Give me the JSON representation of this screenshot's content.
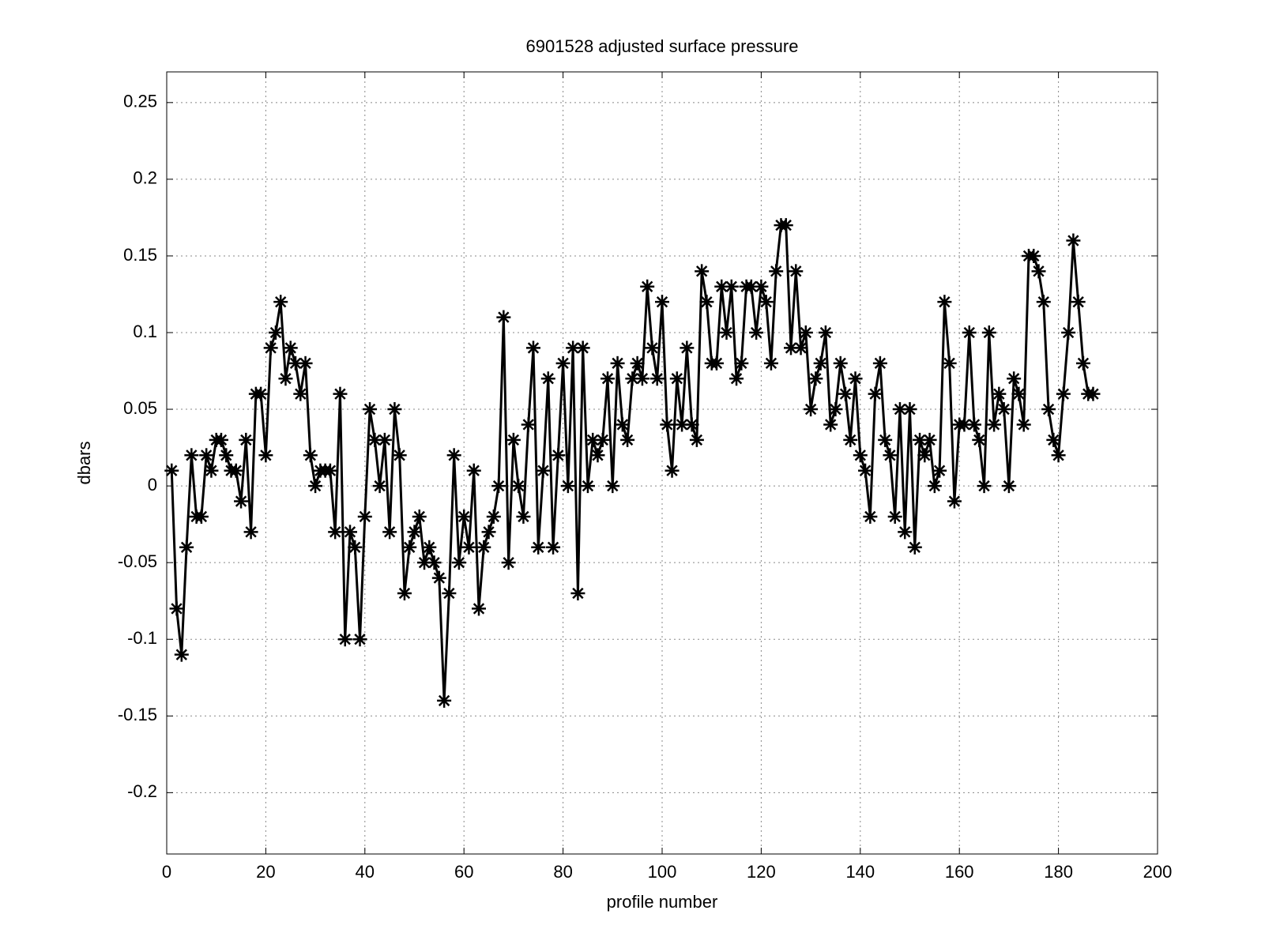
{
  "chart_data": {
    "type": "line",
    "title": "6901528 adjusted surface pressure",
    "x_label": "profile number",
    "y_label": "dbars",
    "x": [
      1,
      2,
      3,
      4,
      5,
      6,
      7,
      8,
      9,
      10,
      11,
      12,
      13,
      14,
      15,
      16,
      17,
      18,
      19,
      20,
      21,
      22,
      23,
      24,
      25,
      26,
      27,
      28,
      29,
      30,
      31,
      32,
      33,
      34,
      35,
      36,
      37,
      38,
      39,
      40,
      41,
      42,
      43,
      44,
      45,
      46,
      47,
      48,
      49,
      50,
      51,
      52,
      53,
      54,
      55,
      56,
      57,
      58,
      59,
      60,
      61,
      62,
      63,
      64,
      65,
      66,
      67,
      68,
      69,
      70,
      71,
      72,
      73,
      74,
      75,
      76,
      77,
      78,
      79,
      80,
      81,
      82,
      83,
      84,
      85,
      86,
      87,
      88,
      89,
      90,
      91,
      92,
      93,
      94,
      95,
      96,
      97,
      98,
      99,
      100,
      101,
      102,
      103,
      104,
      105,
      106,
      107,
      108,
      109,
      110,
      111,
      112,
      113,
      114,
      115,
      116,
      117,
      118,
      119,
      120,
      121,
      122,
      123,
      124,
      125,
      126,
      127,
      128,
      129,
      130,
      131,
      132,
      133,
      134,
      135,
      136,
      137,
      138,
      139,
      140,
      141,
      142,
      143,
      144,
      145,
      146,
      147,
      148,
      149,
      150,
      151,
      152,
      153,
      154,
      155,
      156,
      157,
      158,
      159,
      160,
      161,
      162,
      163,
      164,
      165,
      166,
      167,
      168,
      169,
      170,
      171,
      172,
      173,
      174,
      175,
      176,
      177,
      178,
      179,
      180,
      181,
      182,
      183,
      184,
      185,
      186,
      187
    ],
    "series": [
      {
        "name": "adjusted surface pressure",
        "color": "#000000",
        "marker": "asterisk",
        "values": [
          0.01,
          -0.08,
          -0.11,
          -0.04,
          0.02,
          -0.02,
          -0.02,
          0.02,
          0.01,
          0.03,
          0.03,
          0.02,
          0.01,
          0.01,
          -0.01,
          0.03,
          -0.03,
          0.06,
          0.06,
          0.02,
          0.09,
          0.1,
          0.12,
          0.07,
          0.09,
          0.08,
          0.06,
          0.08,
          0.02,
          0.0,
          0.01,
          0.01,
          0.01,
          -0.03,
          0.06,
          -0.1,
          -0.03,
          -0.04,
          -0.1,
          -0.02,
          0.05,
          0.03,
          0.0,
          0.03,
          -0.03,
          0.05,
          0.02,
          -0.07,
          -0.04,
          -0.03,
          -0.02,
          -0.05,
          -0.04,
          -0.05,
          -0.06,
          -0.14,
          -0.07,
          0.02,
          -0.05,
          -0.02,
          -0.04,
          0.01,
          -0.08,
          -0.04,
          -0.03,
          -0.02,
          0.0,
          0.11,
          -0.05,
          0.03,
          0.0,
          -0.02,
          0.04,
          0.09,
          -0.04,
          0.01,
          0.07,
          -0.04,
          0.02,
          0.08,
          0.0,
          0.09,
          -0.07,
          0.09,
          0.0,
          0.03,
          0.02,
          0.03,
          0.07,
          0.0,
          0.08,
          0.04,
          0.03,
          0.07,
          0.08,
          0.07,
          0.13,
          0.09,
          0.07,
          0.12,
          0.04,
          0.01,
          0.07,
          0.04,
          0.09,
          0.04,
          0.03,
          0.14,
          0.12,
          0.08,
          0.08,
          0.13,
          0.1,
          0.13,
          0.07,
          0.08,
          0.13,
          0.13,
          0.1,
          0.13,
          0.12,
          0.08,
          0.14,
          0.17,
          0.17,
          0.09,
          0.14,
          0.09,
          0.1,
          0.05,
          0.07,
          0.08,
          0.1,
          0.04,
          0.05,
          0.08,
          0.06,
          0.03,
          0.07,
          0.02,
          0.01,
          -0.02,
          0.06,
          0.08,
          0.03,
          0.02,
          -0.02,
          0.05,
          -0.03,
          0.05,
          -0.04,
          0.03,
          0.02,
          0.03,
          0.0,
          0.01,
          0.12,
          0.08,
          -0.01,
          0.04,
          0.04,
          0.1,
          0.04,
          0.03,
          0.0,
          0.1,
          0.04,
          0.06,
          0.05,
          0.0,
          0.07,
          0.06,
          0.04,
          0.15,
          0.15,
          0.14,
          0.12,
          0.05,
          0.03,
          0.02,
          0.06,
          0.1,
          0.16,
          0.12,
          0.08,
          0.06,
          0.06
        ]
      }
    ],
    "xlim": [
      0,
      200
    ],
    "xticks": [
      0,
      20,
      40,
      60,
      80,
      100,
      120,
      140,
      160,
      180,
      200
    ],
    "ylim": [
      -0.24,
      0.27
    ],
    "yticks": [
      -0.2,
      -0.15,
      -0.1,
      -0.05,
      0,
      0.05,
      0.1,
      0.15,
      0.2,
      0.25
    ],
    "grid": true
  }
}
